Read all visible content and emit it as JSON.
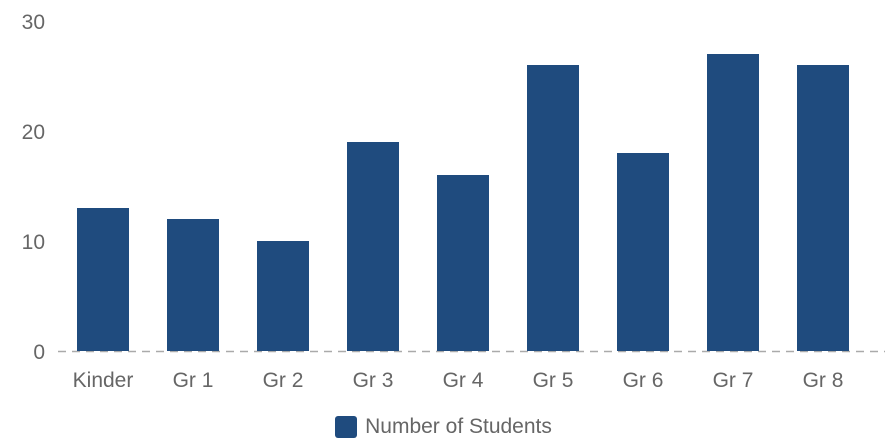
{
  "chart_data": {
    "type": "bar",
    "categories": [
      "Kinder",
      "Gr 1",
      "Gr 2",
      "Gr 3",
      "Gr 4",
      "Gr 5",
      "Gr 6",
      "Gr 7",
      "Gr 8"
    ],
    "series": [
      {
        "name": "Number of Students",
        "values": [
          13,
          12,
          10,
          19,
          16,
          26,
          18,
          27,
          26
        ]
      }
    ],
    "ylim": [
      0,
      30
    ],
    "yticks": [
      0,
      10,
      20,
      30
    ],
    "grid": false,
    "baseline": "dashed",
    "legend_position": "bottom-center",
    "colors": {
      "bar": "#1f4b7e",
      "baseline": "#aaaaaa",
      "text": "#666666"
    }
  }
}
